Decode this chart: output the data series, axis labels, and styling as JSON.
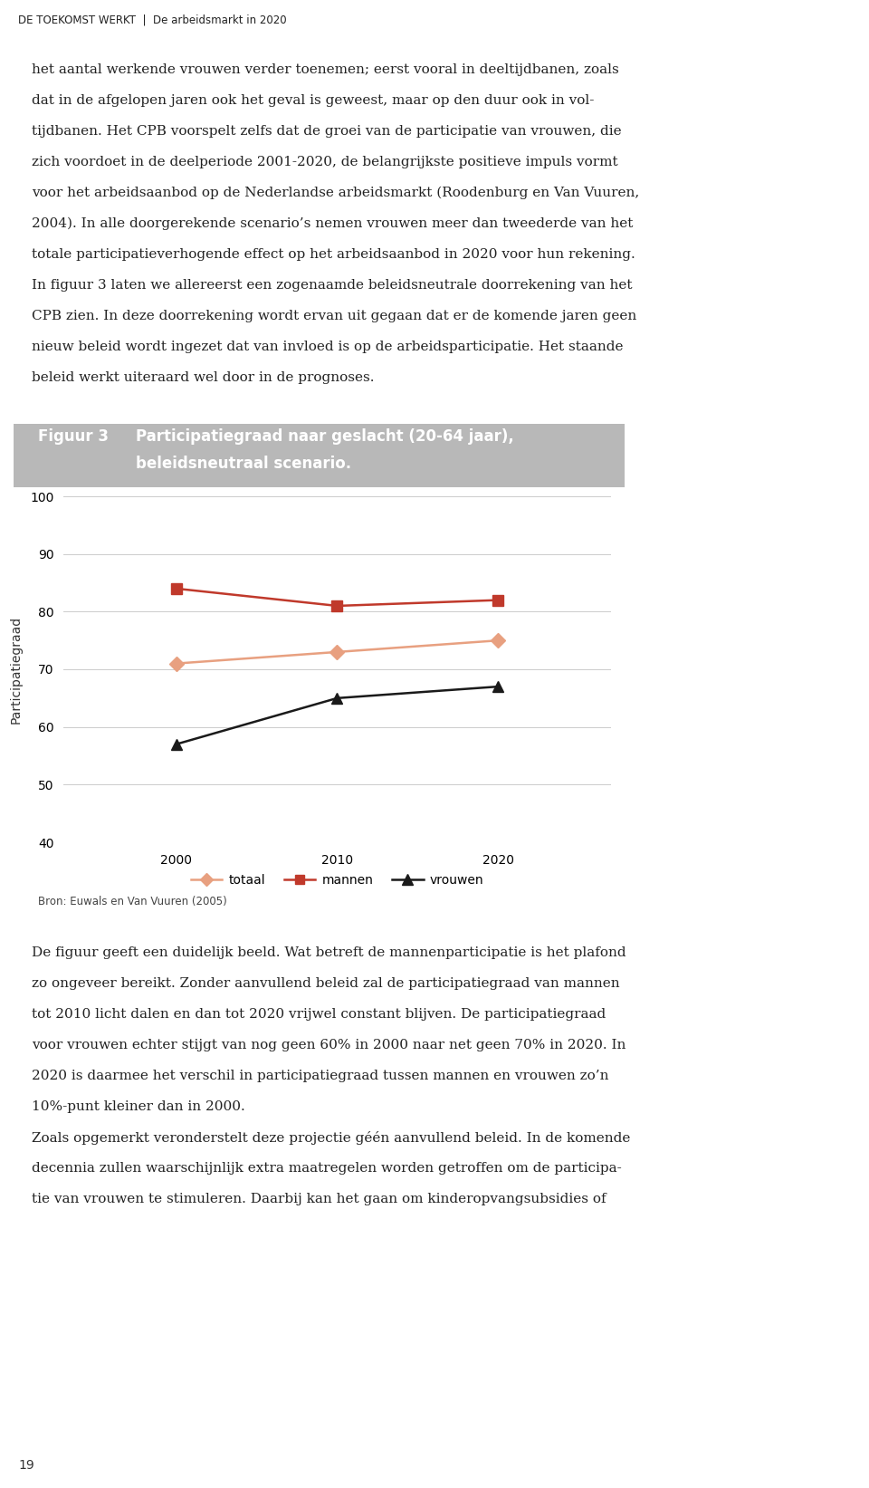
{
  "title_label": "Figuur 3",
  "title_text_line1": "Participatiegraad naar geslacht (20-64 jaar),",
  "title_text_line2": "beleidsneutraal scenario.",
  "x_values": [
    2000,
    2010,
    2020
  ],
  "mannen": [
    84,
    81,
    82
  ],
  "totaal": [
    71,
    73,
    75
  ],
  "vrouwen": [
    57,
    65,
    67
  ],
  "color_mannen": "#c0392b",
  "color_totaal": "#e8a080",
  "color_vrouwen": "#1a1a1a",
  "ylim": [
    40,
    100
  ],
  "yticks": [
    40,
    50,
    60,
    70,
    80,
    90,
    100
  ],
  "xticks": [
    2000,
    2010,
    2020
  ],
  "ylabel": "Participatiegraad",
  "bg_outer": "#d4d4d4",
  "bg_plot": "#ffffff",
  "bg_header": "#b8b8b8",
  "source_text": "Bron: Euwals en Van Vuuren (2005)",
  "legend_totaal": "totaal",
  "legend_mannen": "mannen",
  "legend_vrouwen": "vrouwen",
  "header_text_color": "#ffffff",
  "page_header": "DE TOEKOMST WERKT  |  De arbeidsmarkt in 2020",
  "page_number": "19",
  "body_text_1_lines": [
    "het aantal werkende vrouwen verder toenemen; eerst vooral in deeltijdbanen, zoals",
    "dat in de afgelopen jaren ook het geval is geweest, maar op den duur ook in vol-",
    "tijdbanen. Het CPB voorspelt zelfs dat de groei van de participatie van vrouwen, die",
    "zich voordoet in de deelperiode 2001-2020, de belangrijkste positieve impuls vormt",
    "voor het arbeidsaanbod op de Nederlandse arbeidsmarkt (Roodenburg en Van Vuuren,",
    "2004). In alle doorgerekende scenario’s nemen vrouwen meer dan tweederde van het",
    "totale participatieverhogende effect op het arbeidsaanbod in 2020 voor hun rekening.",
    "In figuur 3 laten we allereerst een zogenaamde beleidsneutrale doorrekening van het",
    "CPB zien. In deze doorrekening wordt ervan uit gegaan dat er de komende jaren geen",
    "nieuw beleid wordt ingezet dat van invloed is op de arbeidsparticipatie. Het staande",
    "beleid werkt uiteraard wel door in de prognoses."
  ],
  "body_text_2_lines": [
    "De figuur geeft een duidelijk beeld. Wat betreft de mannenparticipatie is het plafond",
    "zo ongeveer bereikt. Zonder aanvullend beleid zal de participatiegraad van mannen",
    "tot 2010 licht dalen en dan tot 2020 vrijwel constant blijven. De participatiegraad",
    "voor vrouwen echter stijgt van nog geen 60% in 2000 naar net geen 70% in 2020. In",
    "2020 is daarmee het verschil in participatiegraad tussen mannen en vrouwen zo’n",
    "10%-punt kleiner dan in 2000.",
    "Zoals opgemerkt veronderstelt deze projectie géén aanvullend beleid. In de komende",
    "decennia zullen waarschijnlijk extra maatregelen worden getroffen om de participa-",
    "tie van vrouwen te stimuleren. Daarbij kan het gaan om kinderopvangsubsidies of"
  ]
}
